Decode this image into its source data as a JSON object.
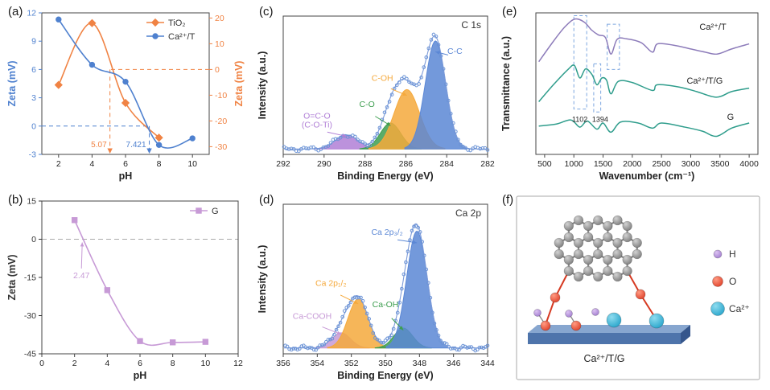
{
  "panels": {
    "a": {
      "label": "(a)"
    },
    "b": {
      "label": "(b)"
    },
    "c": {
      "label": "(c)"
    },
    "d": {
      "label": "(d)"
    },
    "e": {
      "label": "(e)"
    },
    "f": {
      "label": "(f)"
    }
  },
  "chart_data": [
    {
      "id": "a",
      "type": "line",
      "xlabel": "pH",
      "ylabel_left": "Zeta (mV)",
      "ylabel_right": "Zeta (mV)",
      "xlim": [
        1,
        11
      ],
      "xticks": [
        2,
        4,
        6,
        8,
        10
      ],
      "ylim_left": [
        -3,
        12
      ],
      "yticks_left": [
        -3,
        0,
        3,
        6,
        9,
        12
      ],
      "ylim_right": [
        -33,
        22
      ],
      "yticks_right": [
        -30,
        -20,
        -10,
        0,
        10,
        20
      ],
      "axis_color_left": "#4f81cf",
      "axis_color_right": "#f08344",
      "series": [
        {
          "name": "TiO₂",
          "axis": "right",
          "marker": "diamond",
          "color": "#f08344",
          "x": [
            2,
            4,
            6,
            8
          ],
          "y": [
            -6,
            18,
            -13,
            -26.5
          ]
        },
        {
          "name": "Ca²⁺/T",
          "axis": "left",
          "marker": "circle",
          "color": "#4f81cf",
          "x": [
            2,
            4,
            6,
            8,
            10
          ],
          "y": [
            11.3,
            6.5,
            4.7,
            -2.0,
            -1.3
          ]
        }
      ],
      "isoelectric_points": [
        {
          "label": "5.07",
          "x": 5.07,
          "color": "#f08344",
          "axis": "right"
        },
        {
          "label": "7.421",
          "x": 7.421,
          "color": "#4f81cf",
          "axis": "left"
        }
      ]
    },
    {
      "id": "b",
      "type": "line",
      "xlabel": "pH",
      "ylabel": "Zeta (mV)",
      "xlim": [
        0,
        12
      ],
      "xticks": [
        0,
        2,
        4,
        6,
        8,
        10,
        12
      ],
      "ylim": [
        -45,
        15
      ],
      "yticks": [
        -45,
        -30,
        -15,
        0,
        15
      ],
      "zero_line": true,
      "series": [
        {
          "name": "G",
          "marker": "square",
          "color": "#c79ad6",
          "x": [
            2,
            4,
            6,
            8,
            10
          ],
          "y": [
            7.5,
            -20,
            -40,
            -40.5,
            -40.3
          ]
        }
      ],
      "isoelectric_points": [
        {
          "label": "2.47",
          "x": 2.47,
          "color": "#c79ad6"
        }
      ]
    },
    {
      "id": "c",
      "type": "xps",
      "title": "C 1s",
      "xlabel": "Binding Energy (eV)",
      "ylabel": "Intensity (a.u.)",
      "xlim": [
        292,
        282
      ],
      "xticks": [
        292,
        290,
        288,
        286,
        284,
        282
      ],
      "marker_color": "#6b93d6",
      "peaks": [
        {
          "name": "O=C-O",
          "name2": "(C-O-Ti)",
          "center": 288.9,
          "sigma": 0.55,
          "amp": 0.13,
          "color": "#b07fd6",
          "label_x": 290.35,
          "label_y": 0.33
        },
        {
          "name": "C-O",
          "center": 286.75,
          "sigma": 0.5,
          "amp": 0.24,
          "color": "#3d9e4f",
          "label_x": 287.9,
          "label_y": 0.44
        },
        {
          "name": "C-OH",
          "center": 285.95,
          "sigma": 0.62,
          "amp": 0.55,
          "color": "#f5a93c",
          "label_x": 287.15,
          "label_y": 0.68
        },
        {
          "name": "C-C",
          "center": 284.55,
          "sigma": 0.5,
          "amp": 1.0,
          "color": "#5b87d5",
          "label_x": 283.6,
          "label_y": 0.93
        }
      ]
    },
    {
      "id": "d",
      "type": "xps",
      "title": "Ca 2p",
      "xlabel": "Binding Energy (eV)",
      "ylabel": "Intensity (a.u.)",
      "xlim": [
        356,
        344
      ],
      "xticks": [
        356,
        354,
        352,
        350,
        348,
        346,
        344
      ],
      "marker_color": "#6b93d6",
      "peaks": [
        {
          "name": "Ca-COOH",
          "center": 352.6,
          "sigma": 0.55,
          "amp": 0.13,
          "color": "#c79ad6",
          "label_x": 354.3,
          "label_y": 0.3
        },
        {
          "name": "Ca 2p₁/₂",
          "center": 351.6,
          "sigma": 0.6,
          "amp": 0.42,
          "color": "#f5a93c",
          "label_x": 353.2,
          "label_y": 0.58
        },
        {
          "name": "Ca-OH",
          "center": 348.95,
          "sigma": 0.55,
          "amp": 0.17,
          "color": "#3d9e4f",
          "label_x": 350.0,
          "label_y": 0.4
        },
        {
          "name": "Ca 2p₃/₂",
          "center": 348.15,
          "sigma": 0.6,
          "amp": 1.0,
          "color": "#5b87d5",
          "label_x": 349.9,
          "label_y": 1.02
        }
      ]
    },
    {
      "id": "e",
      "type": "ftir",
      "xlabel": "Wavenumber (cm⁻¹)",
      "ylabel": "Transmittance (a.u.)",
      "xlim": [
        350,
        4150
      ],
      "xticks": [
        500,
        1000,
        1500,
        2000,
        2500,
        3000,
        3500,
        4000
      ],
      "box_color": "#7da7e0",
      "series": [
        {
          "name": "Ca²⁺/T",
          "color": "#8d7cba",
          "offset": 0.52,
          "scale": 0.45,
          "label_x": 3380,
          "label_y": 0.88,
          "points": [
            [
              400,
              0.3
            ],
            [
              650,
              0.62
            ],
            [
              850,
              0.85
            ],
            [
              1020,
              0.97
            ],
            [
              1180,
              0.92
            ],
            [
              1300,
              0.8
            ],
            [
              1420,
              0.72
            ],
            [
              1540,
              0.68
            ],
            [
              1635,
              0.42
            ],
            [
              1740,
              0.65
            ],
            [
              1900,
              0.66
            ],
            [
              2150,
              0.6
            ],
            [
              2345,
              0.45
            ],
            [
              2430,
              0.58
            ],
            [
              2700,
              0.56
            ],
            [
              3000,
              0.5
            ],
            [
              3250,
              0.45
            ],
            [
              3450,
              0.42
            ],
            [
              3700,
              0.5
            ],
            [
              4000,
              0.58
            ]
          ]
        },
        {
          "name": "Ca²⁺/T/G",
          "color": "#2f9d8c",
          "offset": 0.26,
          "scale": 0.4,
          "label_x": 3240,
          "label_y": 0.5,
          "points": [
            [
              400,
              0.28
            ],
            [
              650,
              0.58
            ],
            [
              900,
              0.85
            ],
            [
              1010,
              0.92
            ],
            [
              1102,
              0.7
            ],
            [
              1200,
              0.86
            ],
            [
              1310,
              0.76
            ],
            [
              1394,
              0.58
            ],
            [
              1480,
              0.7
            ],
            [
              1560,
              0.66
            ],
            [
              1635,
              0.42
            ],
            [
              1760,
              0.64
            ],
            [
              2000,
              0.62
            ],
            [
              2345,
              0.48
            ],
            [
              2430,
              0.58
            ],
            [
              2800,
              0.54
            ],
            [
              3100,
              0.46
            ],
            [
              3440,
              0.36
            ],
            [
              3700,
              0.46
            ],
            [
              4000,
              0.52
            ]
          ]
        },
        {
          "name": "G",
          "color": "#2f9d8c",
          "offset": 0.02,
          "scale": 0.36,
          "label_x": 3680,
          "label_y": 0.245,
          "points": [
            [
              400,
              0.5
            ],
            [
              700,
              0.54
            ],
            [
              950,
              0.62
            ],
            [
              1102,
              0.48
            ],
            [
              1230,
              0.6
            ],
            [
              1394,
              0.44
            ],
            [
              1500,
              0.56
            ],
            [
              1635,
              0.38
            ],
            [
              1800,
              0.58
            ],
            [
              2100,
              0.56
            ],
            [
              2345,
              0.46
            ],
            [
              2500,
              0.56
            ],
            [
              2900,
              0.48
            ],
            [
              3200,
              0.4
            ],
            [
              3440,
              0.3
            ],
            [
              3700,
              0.46
            ],
            [
              4000,
              0.56
            ]
          ]
        }
      ],
      "band_labels": [
        {
          "text": "1102",
          "x": 1102,
          "y": 0.23
        },
        {
          "text": "1394",
          "x": 1450,
          "y": 0.23
        }
      ],
      "boxes": [
        {
          "x1": 1000,
          "x2": 1220,
          "y1": 0.32,
          "y2": 0.98
        },
        {
          "x1": 1340,
          "x2": 1460,
          "y1": 0.3,
          "y2": 0.64
        },
        {
          "x1": 1570,
          "x2": 1780,
          "y1": 0.6,
          "y2": 0.92
        }
      ]
    },
    {
      "id": "f",
      "type": "schematic",
      "legend": [
        {
          "label": "H",
          "color": "#a37fd0"
        },
        {
          "label": "O",
          "color": "#e0442c"
        },
        {
          "label": "Ca²⁺",
          "color": "#2aa6cc"
        }
      ],
      "substrate_label": "Ca²⁺/T/G",
      "colors": {
        "carbon": "#a0a0a0",
        "carbon_dark": "#7e7e7e",
        "bond": "#8a8a8a",
        "oxygen": "#e0442c",
        "hydrogen": "#a37fd0",
        "calcium": "#2aa6cc",
        "substrate": "#4e74ab",
        "substrate_top": "#87a6cf",
        "substrate_side": "#35568c",
        "red_bond": "#d63a22",
        "border": "#aaaaaa"
      }
    }
  ]
}
